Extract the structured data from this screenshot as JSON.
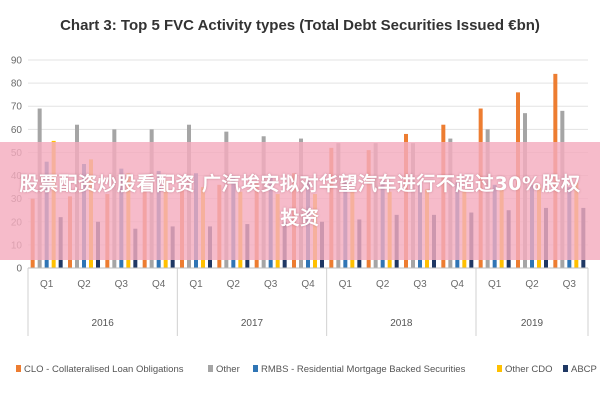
{
  "chart_data": {
    "type": "bar",
    "title": "Chart 3: Top 5 FVC Activity types (Total Debt Securities Issued €bn)",
    "xlabel": "",
    "ylabel": "",
    "ylim": [
      0,
      90
    ],
    "yticks": [
      0,
      10,
      20,
      30,
      40,
      50,
      60,
      70,
      80,
      90
    ],
    "grid": true,
    "legend_position": "bottom",
    "categories": [
      "Q1",
      "Q2",
      "Q3",
      "Q4",
      "Q1",
      "Q2",
      "Q3",
      "Q4",
      "Q1",
      "Q2",
      "Q3",
      "Q4",
      "Q1",
      "Q2",
      "Q3"
    ],
    "groups": [
      {
        "label": "2016",
        "count": 4
      },
      {
        "label": "2017",
        "count": 4
      },
      {
        "label": "2018",
        "count": 4
      },
      {
        "label": "2019",
        "count": 3
      }
    ],
    "series": [
      {
        "name": "CLO - Collateralised Loan Obligations",
        "color": "#ed7d31",
        "values": [
          30,
          31,
          32,
          33,
          34,
          36,
          37,
          41,
          52,
          51,
          58,
          62,
          69,
          76,
          84
        ]
      },
      {
        "name": "Other",
        "color": "#a5a5a5",
        "values": [
          69,
          62,
          60,
          60,
          62,
          59,
          57,
          56,
          54,
          54,
          54,
          56,
          60,
          67,
          68
        ]
      },
      {
        "name": "RMBS - Residential Mortgage Backed Securities",
        "color": "#2f75b5",
        "values": [
          46,
          45,
          43,
          42,
          41,
          40,
          39,
          39,
          38,
          38,
          37,
          37,
          36,
          36,
          35
        ]
      },
      {
        "name": "Other CDO",
        "color": "#ffc000",
        "values": [
          55,
          47,
          41,
          38,
          35,
          33,
          32,
          32,
          33,
          33,
          34,
          34,
          35,
          36,
          37
        ]
      },
      {
        "name": "ABCP",
        "color": "#1f3864",
        "values": [
          22,
          20,
          17,
          18,
          18,
          19,
          20,
          20,
          21,
          23,
          23,
          24,
          25,
          26,
          26
        ]
      }
    ]
  },
  "overlay": {
    "text": "股票配资炒股看配资 广汽埃安拟对华望汽车进行不超过30%股权投资"
  }
}
